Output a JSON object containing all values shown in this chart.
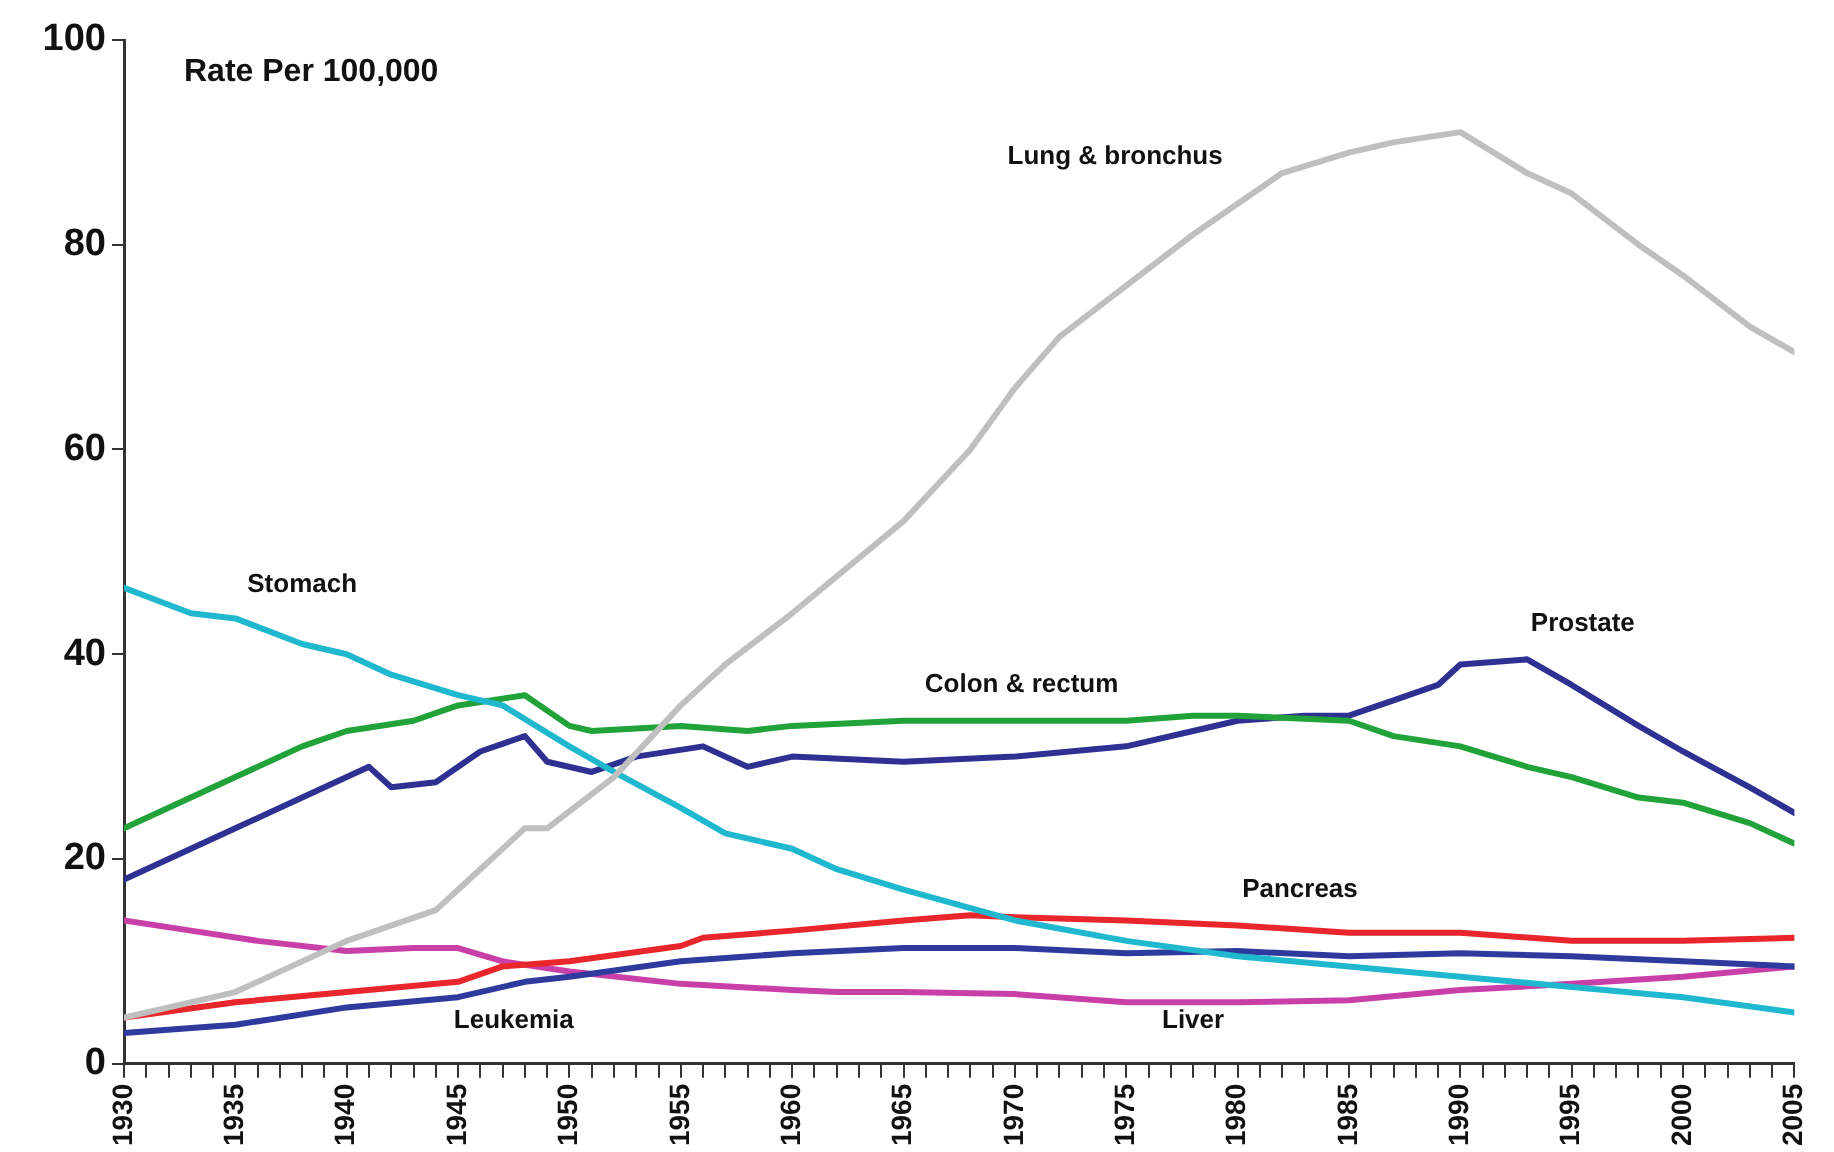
{
  "chart_data": {
    "type": "line",
    "ylabel": "Rate Per 100,000",
    "xlim": [
      1930,
      2005
    ],
    "ylim": [
      0,
      100
    ],
    "yticks": [
      0,
      20,
      40,
      60,
      80,
      100
    ],
    "xticks": [
      1930,
      {
        "value": 1931,
        "label": null
      },
      {
        "value": 1932,
        "label": null
      },
      {
        "value": 1933,
        "label": null
      },
      {
        "value": 1934,
        "label": null
      },
      1935,
      {
        "value": 1936,
        "label": null
      },
      {
        "value": 1937,
        "label": null
      },
      {
        "value": 1938,
        "label": null
      },
      {
        "value": 1939,
        "label": null
      },
      1940,
      {
        "value": 1941,
        "label": null
      },
      {
        "value": 1942,
        "label": null
      },
      {
        "value": 1943,
        "label": null
      },
      {
        "value": 1944,
        "label": null
      },
      1945,
      {
        "value": 1946,
        "label": null
      },
      {
        "value": 1947,
        "label": null
      },
      {
        "value": 1948,
        "label": null
      },
      {
        "value": 1949,
        "label": null
      },
      1950,
      {
        "value": 1951,
        "label": null
      },
      {
        "value": 1952,
        "label": null
      },
      {
        "value": 1953,
        "label": null
      },
      {
        "value": 1954,
        "label": null
      },
      1955,
      {
        "value": 1956,
        "label": null
      },
      {
        "value": 1957,
        "label": null
      },
      {
        "value": 1958,
        "label": null
      },
      {
        "value": 1959,
        "label": null
      },
      1960,
      {
        "value": 1961,
        "label": null
      },
      {
        "value": 1962,
        "label": null
      },
      {
        "value": 1963,
        "label": null
      },
      {
        "value": 1964,
        "label": null
      },
      1965,
      {
        "value": 1966,
        "label": null
      },
      {
        "value": 1967,
        "label": null
      },
      {
        "value": 1968,
        "label": null
      },
      {
        "value": 1969,
        "label": null
      },
      1970,
      {
        "value": 1971,
        "label": null
      },
      {
        "value": 1972,
        "label": null
      },
      {
        "value": 1973,
        "label": null
      },
      {
        "value": 1974,
        "label": null
      },
      1975,
      {
        "value": 1976,
        "label": null
      },
      {
        "value": 1977,
        "label": null
      },
      {
        "value": 1978,
        "label": null
      },
      {
        "value": 1979,
        "label": null
      },
      1980,
      {
        "value": 1981,
        "label": null
      },
      {
        "value": 1982,
        "label": null
      },
      {
        "value": 1983,
        "label": null
      },
      {
        "value": 1984,
        "label": null
      },
      1985,
      {
        "value": 1986,
        "label": null
      },
      {
        "value": 1987,
        "label": null
      },
      {
        "value": 1988,
        "label": null
      },
      {
        "value": 1989,
        "label": null
      },
      1990,
      {
        "value": 1991,
        "label": null
      },
      {
        "value": 1992,
        "label": null
      },
      {
        "value": 1993,
        "label": null
      },
      {
        "value": 1994,
        "label": null
      },
      1995,
      {
        "value": 1996,
        "label": null
      },
      {
        "value": 1997,
        "label": null
      },
      {
        "value": 1998,
        "label": null
      },
      {
        "value": 1999,
        "label": null
      },
      2000,
      {
        "value": 2001,
        "label": null
      },
      {
        "value": 2002,
        "label": null
      },
      {
        "value": 2003,
        "label": null
      },
      {
        "value": 2004,
        "label": null
      },
      2005
    ],
    "grid": false,
    "legend": false,
    "marker": "none",
    "line_style": "solid",
    "series": [
      {
        "name": "Lung & bronchus",
        "color": "#bfbfbf",
        "x": [
          1930,
          1935,
          1940,
          1944,
          1946,
          1948,
          1949,
          1952,
          1955,
          1957,
          1960,
          1965,
          1968,
          1970,
          1972,
          1975,
          1978,
          1980,
          1982,
          1985,
          1987,
          1990,
          1993,
          1995,
          1998,
          2000,
          2003,
          2005
        ],
        "values": [
          4.5,
          7,
          12,
          15,
          19,
          23,
          23,
          28,
          35,
          39,
          44,
          53,
          60,
          66,
          71,
          76,
          81,
          84,
          87,
          89,
          90,
          91,
          87,
          85,
          80,
          77,
          72,
          69.5
        ]
      },
      {
        "name": "Stomach",
        "color": "#1fb8cf",
        "x": [
          1930,
          1933,
          1935,
          1938,
          1940,
          1942,
          1945,
          1947,
          1950,
          1952,
          1955,
          1957,
          1960,
          1962,
          1965,
          1970,
          1975,
          1980,
          1985,
          1990,
          1995,
          2000,
          2005
        ],
        "values": [
          46.5,
          44,
          43.5,
          41,
          40,
          38,
          36,
          35,
          31,
          28.5,
          25,
          22.5,
          21,
          19,
          17,
          14,
          12,
          10.5,
          9.5,
          8.5,
          7.5,
          6.5,
          5
        ]
      },
      {
        "name": "Colon & rectum",
        "color": "#22a33a",
        "x": [
          1930,
          1932,
          1935,
          1938,
          1940,
          1943,
          1945,
          1948,
          1950,
          1951,
          1955,
          1958,
          1960,
          1965,
          1970,
          1975,
          1978,
          1980,
          1985,
          1987,
          1990,
          1993,
          1995,
          1998,
          2000,
          2003,
          2005
        ],
        "values": [
          23,
          25,
          28,
          31,
          32.5,
          33.5,
          35,
          36,
          33,
          32.5,
          33,
          32.5,
          33,
          33.5,
          33.5,
          33.5,
          34,
          34,
          33.5,
          32,
          31,
          29,
          28,
          26,
          25.5,
          23.5,
          21.5
        ]
      },
      {
        "name": "Prostate",
        "color": "#2e3192",
        "x": [
          1930,
          1933,
          1935,
          1938,
          1940,
          1941,
          1942,
          1944,
          1946,
          1948,
          1949,
          1951,
          1953,
          1956,
          1958,
          1960,
          1965,
          1970,
          1975,
          1978,
          1980,
          1983,
          1985,
          1987,
          1989,
          1990,
          1993,
          1995,
          1998,
          2000,
          2003,
          2005
        ],
        "values": [
          18,
          21,
          23,
          26,
          28,
          29,
          27,
          27.5,
          30.5,
          32,
          29.5,
          28.5,
          30,
          31,
          29,
          30,
          29.5,
          30,
          31,
          32.5,
          33.5,
          34,
          34,
          35.5,
          37,
          39,
          39.5,
          37,
          33,
          30.5,
          27,
          24.5
        ]
      },
      {
        "name": "Pancreas",
        "color": "#e8262b",
        "x": [
          1930,
          1935,
          1940,
          1945,
          1947,
          1950,
          1955,
          1956,
          1960,
          1965,
          1968,
          1970,
          1975,
          1980,
          1985,
          1990,
          1995,
          2000,
          2005
        ],
        "values": [
          4.5,
          6,
          7,
          8,
          9.5,
          10,
          11.5,
          12.3,
          13,
          14,
          14.5,
          14.3,
          14,
          13.5,
          12.8,
          12.8,
          12,
          12,
          12.3
        ]
      },
      {
        "name": "Leukemia",
        "color": "#2e3a9e",
        "x": [
          1930,
          1935,
          1940,
          1945,
          1948,
          1950,
          1955,
          1960,
          1965,
          1970,
          1975,
          1980,
          1985,
          1990,
          1995,
          2000,
          2005
        ],
        "values": [
          3,
          3.8,
          5.5,
          6.5,
          8,
          8.5,
          10,
          10.8,
          11.3,
          11.3,
          10.8,
          11,
          10.5,
          10.8,
          10.5,
          10,
          9.5
        ]
      },
      {
        "name": "Liver",
        "color": "#c93fa8",
        "x": [
          1930,
          1933,
          1936,
          1940,
          1943,
          1945,
          1947,
          1950,
          1955,
          1960,
          1962,
          1965,
          1970,
          1975,
          1980,
          1985,
          1990,
          1995,
          2000,
          2005
        ],
        "values": [
          14,
          13,
          12,
          11,
          11.3,
          11.3,
          10,
          9,
          7.8,
          7.2,
          7,
          7,
          6.8,
          6,
          6,
          6.2,
          7.2,
          7.8,
          8.5,
          9.5
        ]
      }
    ]
  }
}
